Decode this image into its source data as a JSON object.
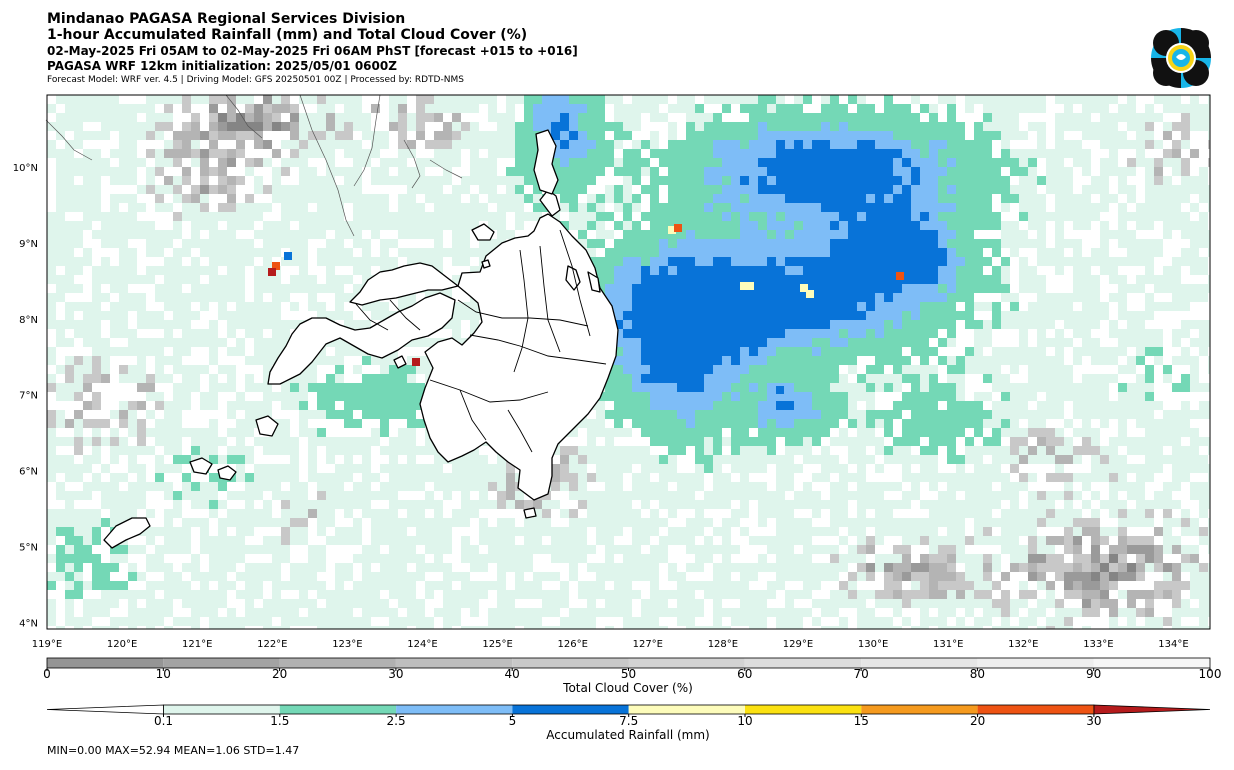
{
  "header": {
    "title_line1": "Mindanao PAGASA Regional Services Division",
    "title_line2": "1-hour Accumulated Rainfall (mm) and Total Cloud Cover (%)",
    "valid_time": "02-May-2025 Fri 05AM to 02-May-2025 Fri 06AM PhST [forecast +015 to +016]",
    "init_line": "PAGASA WRF 12km initialization: 2025/05/01 0600Z",
    "model_line": "Forecast Model: WRF ver. 4.5 | Driving Model: GFS 20250501 00Z | Processed by: RDTD-NMS"
  },
  "map": {
    "lon_labels": [
      "119°E",
      "120°E",
      "121°E",
      "122°E",
      "123°E",
      "124°E",
      "125°E",
      "126°E",
      "127°E",
      "128°E",
      "129°E",
      "130°E",
      "131°E",
      "132°E",
      "133°E",
      "134°E"
    ],
    "lat_labels": [
      "10°N",
      "9°N",
      "8°N",
      "7°N",
      "6°N",
      "5°N",
      "4°N"
    ]
  },
  "cloud_colorbar": {
    "label": "Total Cloud Cover (%)",
    "ticks": [
      "0",
      "10",
      "20",
      "30",
      "40",
      "50",
      "60",
      "70",
      "80",
      "90",
      "100"
    ]
  },
  "rain_colorbar": {
    "label": "Accumulated Rainfall (mm)",
    "ticks": [
      "0.1",
      "1.5",
      "2.5",
      "5",
      "7.5",
      "10",
      "15",
      "20",
      "30"
    ],
    "colors": [
      "#dff5ec",
      "#74d8b6",
      "#7ebdf7",
      "#0873d8",
      "#fdfcbb",
      "#fbe111",
      "#f59a1e",
      "#ee5313",
      "#b51b1c"
    ]
  },
  "stats": {
    "text": "MIN=0.00   MAX=52.94   MEAN=1.06   STD=1.47"
  }
}
